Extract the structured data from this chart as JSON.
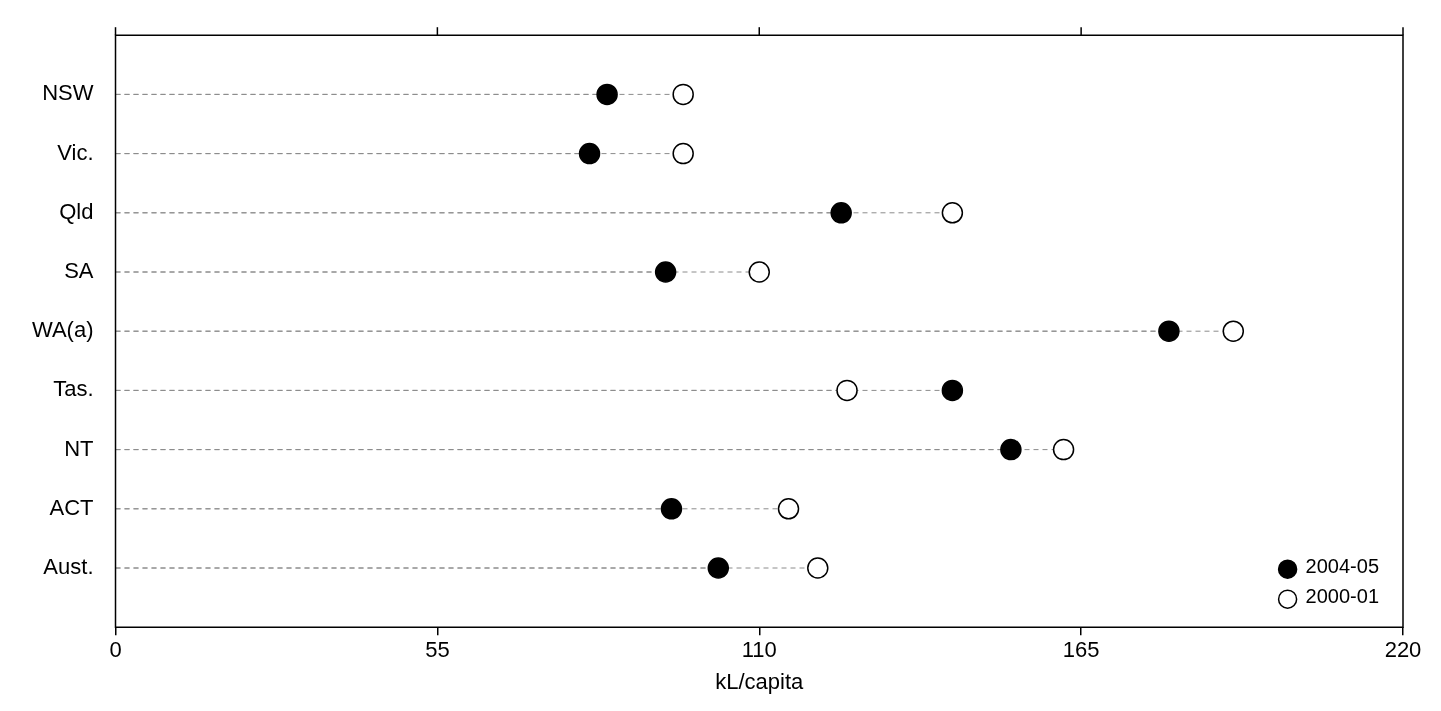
{
  "chart_data": {
    "type": "lollipop",
    "orientation": "horizontal",
    "xlabel": "kL/capita",
    "categories": [
      "NSW",
      "Vic.",
      "Qld",
      "SA",
      "WA(a)",
      "Tas.",
      "NT",
      "ACT",
      "Aust."
    ],
    "series": [
      {
        "name": "2004-05",
        "color": "#000000",
        "values": [
          84,
          81,
          124,
          94,
          180,
          143,
          153,
          95,
          103
        ]
      },
      {
        "name": "2000-01",
        "color": "#ffffff",
        "values": [
          97,
          97,
          143,
          110,
          191,
          125,
          162,
          115,
          120
        ]
      }
    ],
    "xlim": [
      0,
      220
    ],
    "xticks": [
      0,
      55,
      110,
      165,
      220
    ],
    "marker": "circle",
    "line_style": "dashed",
    "legend": "bottom right",
    "grid": false
  }
}
